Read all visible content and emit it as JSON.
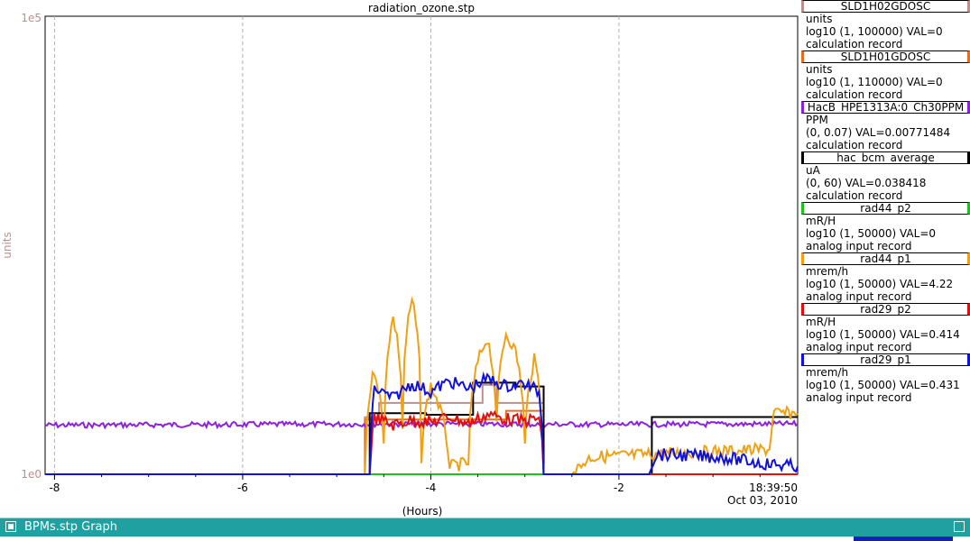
{
  "chart_data": {
    "type": "line",
    "title": "radiation_ozone.stp",
    "xlabel": "(Hours)",
    "ylabel": "units",
    "y_scale": "log",
    "ylim": [
      1,
      100000
    ],
    "y_tick_labels": {
      "top": "1e5",
      "bottom": "1e0"
    },
    "xlim": [
      -8.1,
      -0.1
    ],
    "x_ticks": [
      -8,
      -6,
      -4,
      -2
    ],
    "x_tick_labels": [
      "-8",
      "-6",
      "-4",
      "-2"
    ],
    "end_time": "18:39:50",
    "end_date": "Oct 03, 2010",
    "grid": true,
    "legend_position": "right",
    "series": [
      {
        "name": "SLD1H02GDOSC",
        "color": "#bc8f8f",
        "unit": "units",
        "range": "log10 (1, 100000) VAL=0",
        "record": "calculation record",
        "points": [
          [
            -8.1,
            1
          ],
          [
            -4.7,
            1
          ],
          [
            -4.7,
            4.2
          ],
          [
            -4.55,
            4.2
          ],
          [
            -4.55,
            6
          ],
          [
            -3.45,
            6
          ],
          [
            -3.45,
            9.5
          ],
          [
            -3.3,
            9.5
          ],
          [
            -3.3,
            6
          ],
          [
            -2.8,
            6
          ],
          [
            -2.8,
            1
          ],
          [
            -0.1,
            1
          ]
        ]
      },
      {
        "name": "SLD1H01GDOSC",
        "color": "#e07020",
        "unit": "units",
        "range": "log10 (1, 110000) VAL=0",
        "record": "calculation record",
        "points": [
          [
            -8.1,
            1
          ],
          [
            -4.7,
            1
          ],
          [
            -4.7,
            4.0
          ],
          [
            -3.2,
            4.0
          ],
          [
            -3.2,
            5.0
          ],
          [
            -2.8,
            5.0
          ],
          [
            -2.8,
            1
          ],
          [
            -0.1,
            1
          ]
        ]
      },
      {
        "name": "HacB_HPE1313A:0_Ch30PPM",
        "color": "#9020e0",
        "unit": "PPM",
        "range": "(0, 0.07) VAL=0.00771484",
        "record": "calculation record",
        "points": [
          [
            -8.1,
            0.0075
          ],
          [
            -6,
            0.0076
          ],
          [
            -4,
            0.0077
          ],
          [
            -2,
            0.0076
          ],
          [
            -0.1,
            0.0077
          ]
        ]
      },
      {
        "name": "hac_bcm_average",
        "color": "#000000",
        "unit": "uA",
        "range": "(0, 60) VAL=0.038418",
        "record": "calculation record",
        "points": [
          [
            -8.1,
            0
          ],
          [
            -4.65,
            0
          ],
          [
            -4.65,
            8
          ],
          [
            -4.05,
            8
          ],
          [
            -4.05,
            7.8
          ],
          [
            -3.55,
            7.8
          ],
          [
            -3.55,
            12
          ],
          [
            -3.1,
            12
          ],
          [
            -3.1,
            11.5
          ],
          [
            -2.8,
            11.5
          ],
          [
            -2.8,
            0
          ],
          [
            -1.65,
            0
          ],
          [
            -1.65,
            7.5
          ],
          [
            -0.1,
            7.5
          ]
        ]
      },
      {
        "name": "rad44_p2",
        "color": "#20c020",
        "unit": "mR/H",
        "range": "log10 (1, 50000) VAL=0",
        "record": "analog input record",
        "points": [
          [
            -8.1,
            1
          ],
          [
            -0.1,
            1
          ]
        ]
      },
      {
        "name": "rad44_p1",
        "color": "#f0a010",
        "unit": "mrem/h",
        "range": "log10 (1, 50000) VAL=4.22",
        "record": "analog input record",
        "points": [
          [
            -8.1,
            1
          ],
          [
            -4.7,
            1
          ],
          [
            -4.6,
            12
          ],
          [
            -4.5,
            2
          ],
          [
            -4.4,
            40
          ],
          [
            -4.3,
            3
          ],
          [
            -4.2,
            60
          ],
          [
            -4.1,
            1.5
          ],
          [
            -4.0,
            8
          ],
          [
            -3.8,
            1.2
          ],
          [
            -3.6,
            1.3
          ],
          [
            -3.5,
            14
          ],
          [
            -3.4,
            25
          ],
          [
            -3.3,
            3
          ],
          [
            -3.2,
            28
          ],
          [
            -3.1,
            18
          ],
          [
            -3.0,
            2
          ],
          [
            -2.9,
            15
          ],
          [
            -2.8,
            1
          ],
          [
            -2.5,
            1
          ],
          [
            -2.3,
            1.5
          ],
          [
            -0.4,
            1.8
          ],
          [
            -0.35,
            4.2
          ],
          [
            -0.1,
            4.22
          ]
        ]
      },
      {
        "name": "rad29_p2",
        "color": "#e01010",
        "unit": "mR/H",
        "range": "log10 (1, 50000) VAL=0.414",
        "record": "analog input record",
        "points": [
          [
            -8.1,
            1
          ],
          [
            -4.65,
            1
          ],
          [
            -4.6,
            3.8
          ],
          [
            -4.4,
            3.2
          ],
          [
            -4.2,
            3.6
          ],
          [
            -4.0,
            3.4
          ],
          [
            -3.8,
            3.9
          ],
          [
            -3.6,
            3.3
          ],
          [
            -3.4,
            4.1
          ],
          [
            -3.2,
            3.7
          ],
          [
            -3.0,
            3.5
          ],
          [
            -2.85,
            3.8
          ],
          [
            -2.8,
            1
          ],
          [
            -0.1,
            1
          ]
        ]
      },
      {
        "name": "rad29_p1",
        "color": "#1010e0",
        "unit": "mrem/h",
        "range": "log10 (1, 50000) VAL=0.431",
        "record": "analog input record",
        "points": [
          [
            -8.1,
            1
          ],
          [
            -4.65,
            1
          ],
          [
            -4.6,
            7.5
          ],
          [
            -4.4,
            6
          ],
          [
            -4.2,
            8.5
          ],
          [
            -4.0,
            7
          ],
          [
            -3.8,
            9
          ],
          [
            -3.6,
            7.5
          ],
          [
            -3.4,
            9.5
          ],
          [
            -3.2,
            8
          ],
          [
            -3.0,
            8.5
          ],
          [
            -2.85,
            7
          ],
          [
            -2.8,
            1
          ],
          [
            -1.7,
            1
          ],
          [
            -1.6,
            1.6
          ],
          [
            -0.9,
            1.5
          ],
          [
            -0.5,
            1.3
          ],
          [
            -0.1,
            1.2
          ]
        ]
      }
    ]
  },
  "window": {
    "title": "BPMs.stp Graph"
  }
}
